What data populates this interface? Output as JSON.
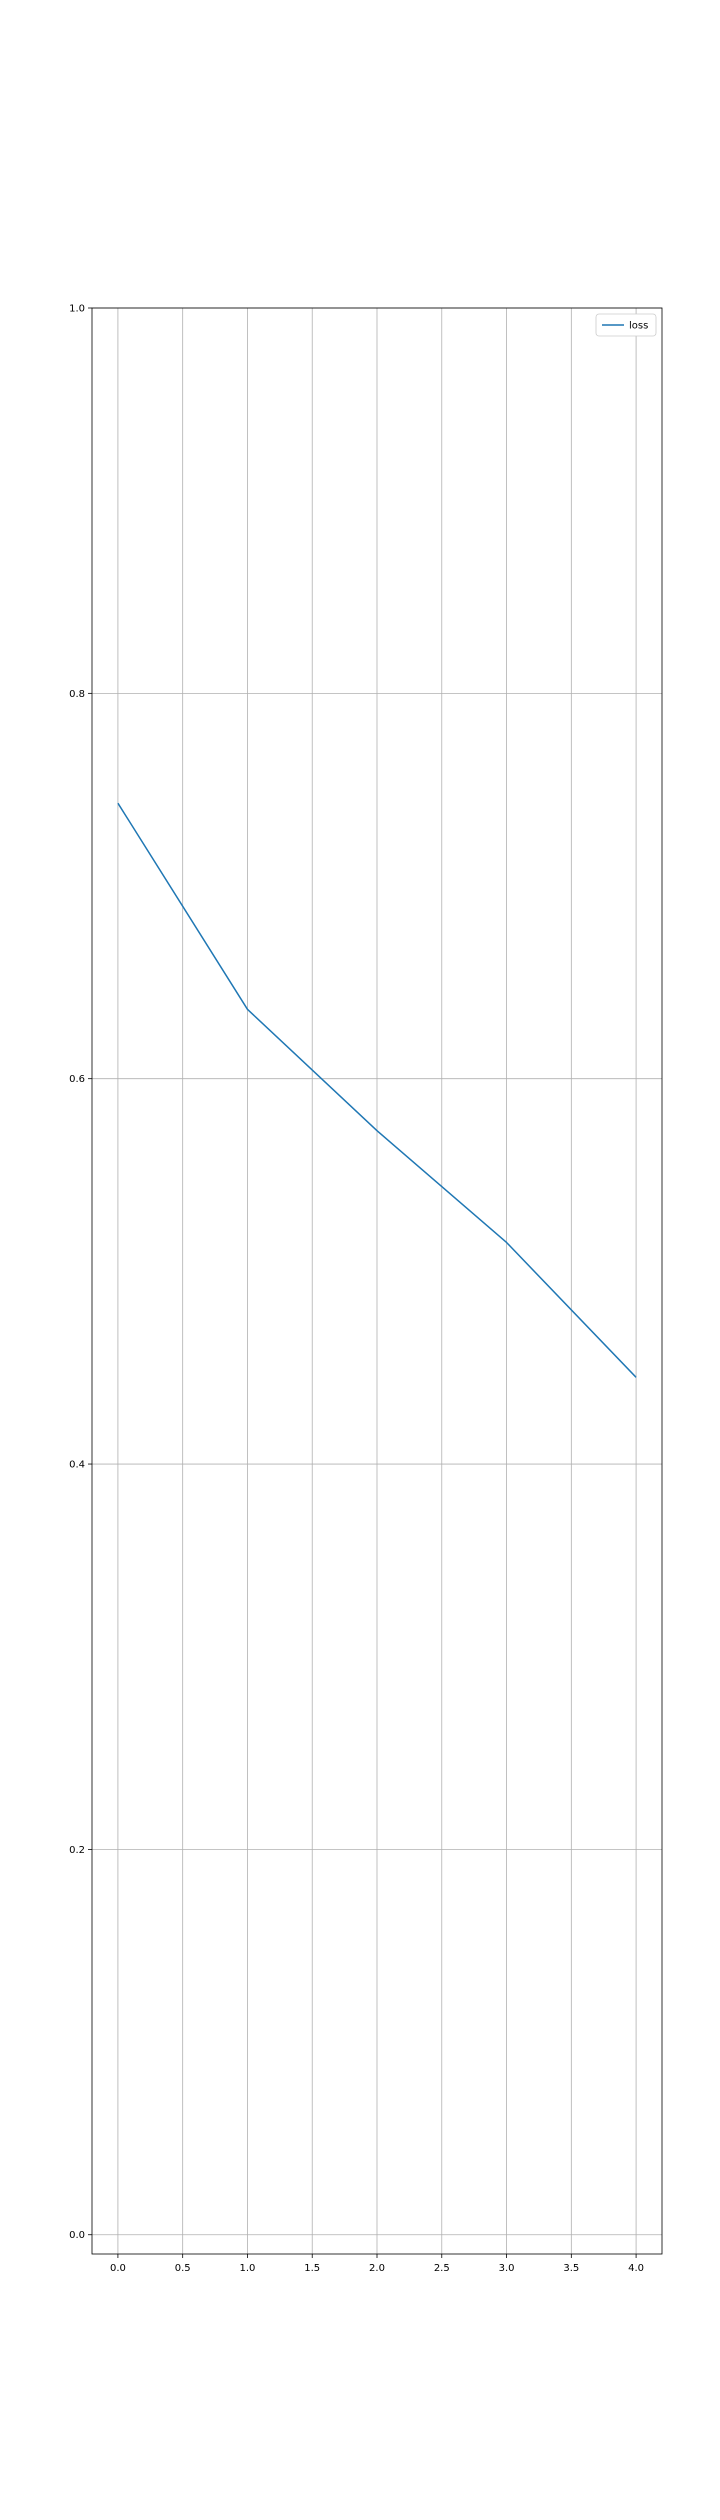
{
  "chart_data": {
    "type": "line",
    "title": "",
    "xlabel": "",
    "ylabel": "",
    "x": [
      0,
      1,
      2,
      3,
      4
    ],
    "series": [
      {
        "name": "loss",
        "values": [
          0.743,
          0.636,
          0.573,
          0.515,
          0.445
        ],
        "color": "#1f77b4"
      }
    ],
    "xlim": [
      -0.2,
      4.2
    ],
    "ylim": [
      -0.01,
      1.0
    ],
    "xticks": [
      0.0,
      0.5,
      1.0,
      1.5,
      2.0,
      2.5,
      3.0,
      3.5,
      4.0
    ],
    "xtick_labels": [
      "0.0",
      "0.5",
      "1.0",
      "1.5",
      "2.0",
      "2.5",
      "3.0",
      "3.5",
      "4.0"
    ],
    "yticks": [
      0.0,
      0.2,
      0.4,
      0.6,
      0.8,
      1.0
    ],
    "ytick_labels": [
      "0.0",
      "0.2",
      "0.4",
      "0.6",
      "0.8",
      "1.0"
    ],
    "grid": true,
    "legend_position": "top-right"
  }
}
